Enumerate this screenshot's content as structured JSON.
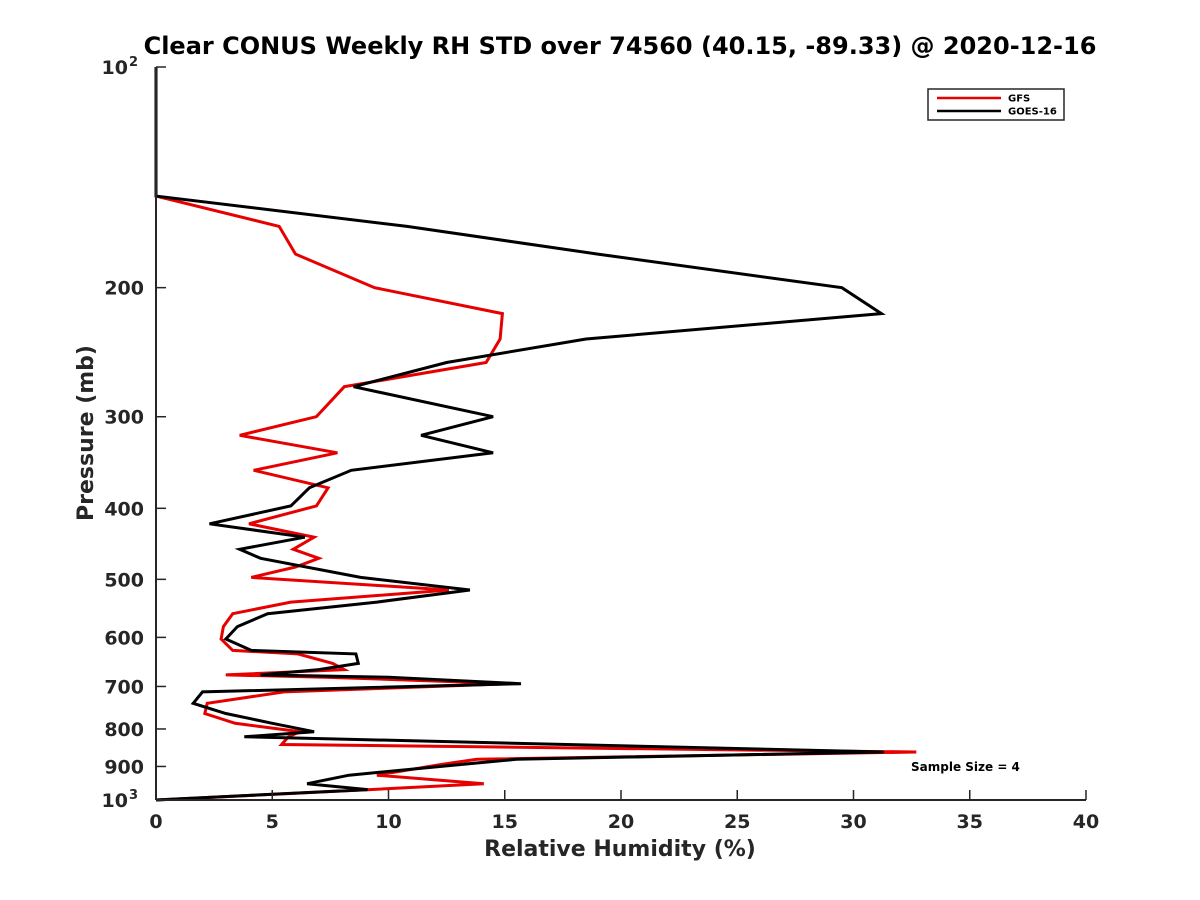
{
  "chart_data": {
    "type": "line",
    "title": "Clear CONUS Weekly RH STD over 74560 (40.15, -89.33) @ 2020-12-16",
    "xlabel": "Relative Humidity (%)",
    "ylabel": "Pressure (mb)",
    "xlim": [
      0,
      40
    ],
    "ylim": [
      100,
      1000
    ],
    "y_scale": "log",
    "y_reversed": true,
    "grid": false,
    "legend_position": "top-right",
    "x_ticks": [
      0,
      5,
      10,
      15,
      20,
      25,
      30,
      35,
      40
    ],
    "y_ticks": [
      {
        "value": 100,
        "label": "10",
        "exp": "2"
      },
      {
        "value": 200,
        "label": "200"
      },
      {
        "value": 300,
        "label": "300"
      },
      {
        "value": 400,
        "label": "400"
      },
      {
        "value": 500,
        "label": "500"
      },
      {
        "value": 600,
        "label": "600"
      },
      {
        "value": 700,
        "label": "700"
      },
      {
        "value": 800,
        "label": "800"
      },
      {
        "value": 900,
        "label": "900"
      },
      {
        "value": 1000,
        "label": "10",
        "exp": "3"
      }
    ],
    "series": [
      {
        "name": "GFS",
        "color": "#e60000",
        "points": [
          [
            0,
            100
          ],
          [
            0,
            150
          ],
          [
            5.3,
            165
          ],
          [
            6,
            180
          ],
          [
            9.4,
            200
          ],
          [
            14.9,
            217
          ],
          [
            14.8,
            235
          ],
          [
            14.2,
            253
          ],
          [
            8.1,
            273
          ],
          [
            6.9,
            300
          ],
          [
            3.6,
            318
          ],
          [
            7.8,
            336
          ],
          [
            4.2,
            355
          ],
          [
            7.4,
            375
          ],
          [
            6.9,
            397
          ],
          [
            4,
            420
          ],
          [
            6.8,
            438
          ],
          [
            5.9,
            455
          ],
          [
            7,
            468
          ],
          [
            6,
            481
          ],
          [
            4.1,
            497
          ],
          [
            12.6,
            517
          ],
          [
            5.8,
            537
          ],
          [
            3.3,
            557
          ],
          [
            2.9,
            580
          ],
          [
            2.8,
            603
          ],
          [
            3.3,
            625
          ],
          [
            6.1,
            632
          ],
          [
            7.6,
            651
          ],
          [
            8.1,
            664
          ],
          [
            3,
            675
          ],
          [
            7.3,
            680
          ],
          [
            15.3,
            694
          ],
          [
            5.5,
            712
          ],
          [
            2.2,
            738
          ],
          [
            2.1,
            762
          ],
          [
            3.4,
            786
          ],
          [
            6.2,
            807
          ],
          [
            5.7,
            820
          ],
          [
            5.4,
            840
          ],
          [
            32.7,
            860
          ],
          [
            13.8,
            880
          ],
          [
            12.2,
            895
          ],
          [
            9.5,
            925
          ],
          [
            14.1,
            950
          ],
          [
            9.2,
            968
          ],
          [
            0,
            1000
          ]
        ]
      },
      {
        "name": "GOES-16",
        "color": "#000000",
        "points": [
          [
            0,
            100
          ],
          [
            0,
            150
          ],
          [
            10.8,
            165
          ],
          [
            19,
            180
          ],
          [
            29.5,
            200
          ],
          [
            31.2,
            217
          ],
          [
            18.5,
            235
          ],
          [
            12.5,
            253
          ],
          [
            8.5,
            273
          ],
          [
            14.5,
            300
          ],
          [
            11.4,
            318
          ],
          [
            14.5,
            336
          ],
          [
            8.4,
            355
          ],
          [
            6.6,
            375
          ],
          [
            5.8,
            397
          ],
          [
            2.3,
            420
          ],
          [
            6.4,
            438
          ],
          [
            3.6,
            455
          ],
          [
            4.5,
            468
          ],
          [
            8.8,
            497
          ],
          [
            13.5,
            517
          ],
          [
            9.5,
            537
          ],
          [
            4.8,
            557
          ],
          [
            3.5,
            580
          ],
          [
            3,
            603
          ],
          [
            4.1,
            625
          ],
          [
            8.6,
            632
          ],
          [
            8.7,
            651
          ],
          [
            7,
            664
          ],
          [
            4.5,
            675
          ],
          [
            10,
            680
          ],
          [
            15.7,
            694
          ],
          [
            2,
            712
          ],
          [
            1.6,
            738
          ],
          [
            3,
            762
          ],
          [
            5,
            786
          ],
          [
            6.8,
            807
          ],
          [
            3.8,
            820
          ],
          [
            31.3,
            860
          ],
          [
            15.5,
            880
          ],
          [
            13,
            895
          ],
          [
            8.3,
            925
          ],
          [
            6.5,
            950
          ],
          [
            9.1,
            968
          ],
          [
            0,
            1000
          ]
        ]
      }
    ],
    "annotation": "Sample Size = 4"
  }
}
